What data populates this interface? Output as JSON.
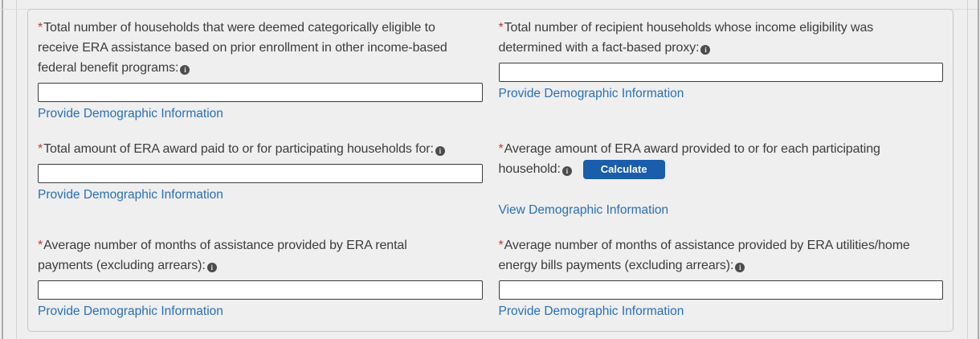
{
  "required_marker": "*",
  "icons": {
    "info_glyph": "i"
  },
  "colors": {
    "background": "#efefef",
    "panel_border": "#c7c7c7",
    "link_blue": "#2a6fb8",
    "button_blue": "#1a5dab",
    "required_red": "#c23934",
    "input_border": "#3c3c3c"
  },
  "fields": {
    "categorically_eligible": {
      "label": "Total number of households that were deemed categorically eligible to\nreceive ERA assistance based on prior enrollment in other income-based\nfederal benefit programs:",
      "value": "",
      "link": "Provide Demographic Information"
    },
    "fact_based_proxy": {
      "label": "Total number of recipient households whose income eligibility was\ndetermined with a fact-based proxy:",
      "value": "",
      "link": "Provide Demographic Information"
    },
    "total_amount_paid": {
      "label": "Total amount of ERA award paid to or for participating households for:",
      "value": "",
      "link": "Provide Demographic Information"
    },
    "average_award": {
      "label": "Average amount of ERA award provided to or for each participating\nhousehold:",
      "button_label": "Calculate",
      "link": "View Demographic Information"
    },
    "avg_months_rental": {
      "label": "Average number of months of assistance provided by ERA rental\npayments (excluding arrears):",
      "value": "",
      "link": "Provide Demographic Information"
    },
    "avg_months_utilities": {
      "label": "Average number of months of assistance provided by ERA utilities/home\nenergy bills payments (excluding arrears):",
      "value": "",
      "link": "Provide Demographic Information"
    }
  }
}
